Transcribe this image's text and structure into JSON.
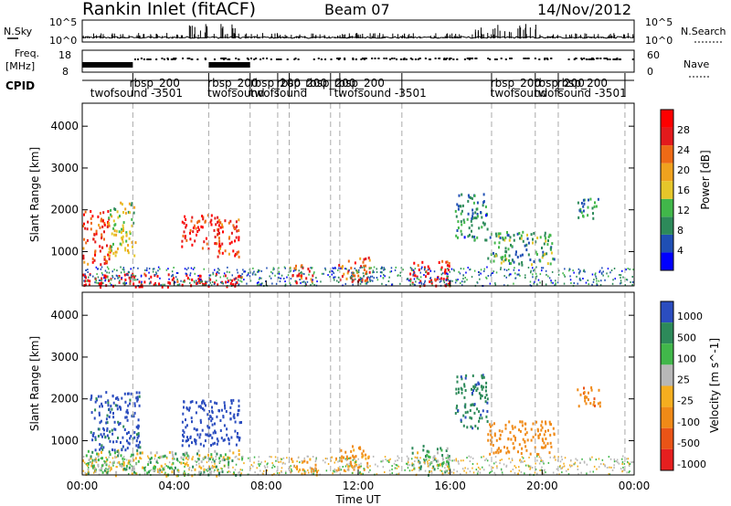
{
  "header": {
    "station": "Rankin Inlet (fitACF)",
    "beam": "Beam 07",
    "date": "14/Nov/2012"
  },
  "strip_labels": {
    "nsky": "N.Sky",
    "nsky_top": "10^5",
    "nsky_bottom": "10^0",
    "nsearch": "N.Search",
    "nsearch_top": "10^5",
    "nsearch_bottom": "10^0",
    "freq": "Freq.",
    "freq_unit": "[MHz]",
    "freq_top": "18",
    "freq_bottom": "8",
    "nave": "Nave",
    "nave_top": "60",
    "nave_bottom": "0",
    "cpid": "CPID"
  },
  "cpid_labels": [
    {
      "text": "rbsp_200",
      "t": 2.05,
      "row": 0
    },
    {
      "text": "twofsound -3501",
      "t": 0.35,
      "row": 1
    },
    {
      "text": "rbsp_200",
      "t": 5.45,
      "row": 0
    },
    {
      "text": "twofsound",
      "t": 5.45,
      "row": 1
    },
    {
      "text": "rbsp_200",
      "t": 7.3,
      "row": 0
    },
    {
      "text": "twofsound",
      "t": 7.3,
      "row": 1
    },
    {
      "text": "rbsp_200",
      "t": 8.45,
      "row": 0
    },
    {
      "text": "rbsp_200",
      "t": 9.7,
      "row": 0
    },
    {
      "text": "rbsp_200",
      "t": 10.95,
      "row": 0
    },
    {
      "text": "twofsound -3501",
      "t": 10.95,
      "row": 1
    },
    {
      "text": "rbsp_200",
      "t": 17.75,
      "row": 0
    },
    {
      "text": "twofsound",
      "t": 17.75,
      "row": 1
    },
    {
      "text": "rbsp_200",
      "t": 19.65,
      "row": 0
    },
    {
      "text": "rbsp_200",
      "t": 20.65,
      "row": 0
    },
    {
      "text": "twofsound -3501",
      "t": 19.65,
      "row": 1
    }
  ],
  "axis": {
    "xlabel": "Time UT",
    "xticks": [
      "00:00",
      "04:00",
      "08:00",
      "12:00",
      "16:00",
      "20:00",
      "00:00"
    ],
    "ylabel": "Slant Range [km]",
    "yticks": [
      "1000",
      "2000",
      "3000",
      "4000"
    ]
  },
  "colorbars": {
    "power": {
      "label": "Power [dB]",
      "ticks": [
        "4",
        "8",
        "12",
        "16",
        "20",
        "24",
        "28"
      ],
      "colors": [
        "#0000ff",
        "#1f4fb4",
        "#2d8a5a",
        "#41b74a",
        "#e6c62a",
        "#f0a21e",
        "#ee6a16",
        "#e31a1c",
        "#ff0000"
      ]
    },
    "velocity": {
      "label": "Velocity [m s^-1]",
      "ticks": [
        "1000",
        "500",
        "100",
        "25",
        "-25",
        "-100",
        "-500",
        "-1000"
      ],
      "colors": [
        "#2b4dbf",
        "#2d8a5a",
        "#41b74a",
        "#b7b7b7",
        "#f5ae1f",
        "#f08a17",
        "#ea5417",
        "#e61f1f"
      ]
    }
  },
  "chart_data": [
    {
      "type": "heatmap",
      "title": "Rankin Inlet (fitACF)",
      "subtitle": "Beam 07",
      "xlabel": "Time UT",
      "ylabel": "Slant Range [km]",
      "x_range_hours": [
        0,
        24
      ],
      "ylim": [
        180,
        4550
      ],
      "parameter": "Power [dB]",
      "color_range": [
        0,
        30
      ],
      "features": [
        {
          "t_start": 0.0,
          "t_end": 1.2,
          "range_min": 700,
          "range_max": 2000,
          "value_db": 24
        },
        {
          "t_start": 0.0,
          "t_end": 7.0,
          "range_min": 180,
          "range_max": 500,
          "value_db": 28
        },
        {
          "t_start": 1.1,
          "t_end": 2.3,
          "range_min": 900,
          "range_max": 2200,
          "value_db": 14
        },
        {
          "t_start": 4.3,
          "t_end": 6.0,
          "range_min": 1100,
          "range_max": 1900,
          "value_db": 26
        },
        {
          "t_start": 5.8,
          "t_end": 6.8,
          "range_min": 900,
          "range_max": 1800,
          "value_db": 24
        },
        {
          "t_start": 9.0,
          "t_end": 10.0,
          "range_min": 200,
          "range_max": 700,
          "value_db": 22
        },
        {
          "t_start": 11.0,
          "t_end": 12.5,
          "range_min": 300,
          "range_max": 900,
          "value_db": 22
        },
        {
          "t_start": 14.2,
          "t_end": 16.0,
          "range_min": 200,
          "range_max": 800,
          "value_db": 26
        },
        {
          "t_start": 16.2,
          "t_end": 17.6,
          "range_min": 1300,
          "range_max": 2400,
          "value_db": 8
        },
        {
          "t_start": 17.6,
          "t_end": 20.5,
          "range_min": 700,
          "range_max": 1500,
          "value_db": 10
        },
        {
          "t_start": 21.5,
          "t_end": 22.5,
          "range_min": 1800,
          "range_max": 2300,
          "value_db": 8
        }
      ]
    },
    {
      "type": "heatmap",
      "xlabel": "Time UT",
      "ylabel": "Slant Range [km]",
      "x_range_hours": [
        0,
        24
      ],
      "ylim": [
        180,
        4550
      ],
      "parameter": "Velocity [m s^-1]",
      "color_range": [
        -1000,
        1000
      ],
      "features": [
        {
          "t_start": 0.3,
          "t_end": 2.5,
          "range_min": 800,
          "range_max": 2200,
          "value_ms": 600
        },
        {
          "t_start": 4.3,
          "t_end": 6.9,
          "range_min": 900,
          "range_max": 2000,
          "value_ms": 700
        },
        {
          "t_start": 0.0,
          "t_end": 7.0,
          "range_min": 180,
          "range_max": 800,
          "value_ms": 50
        },
        {
          "t_start": 9.0,
          "t_end": 10.2,
          "range_min": 200,
          "range_max": 600,
          "value_ms": -200
        },
        {
          "t_start": 11.0,
          "t_end": 12.5,
          "range_min": 300,
          "range_max": 900,
          "value_ms": -200
        },
        {
          "t_start": 14.3,
          "t_end": 16.0,
          "range_min": 200,
          "range_max": 900,
          "value_ms": 100
        },
        {
          "t_start": 16.2,
          "t_end": 17.6,
          "range_min": 1300,
          "range_max": 2600,
          "value_ms": 400
        },
        {
          "t_start": 17.6,
          "t_end": 20.5,
          "range_min": 700,
          "range_max": 1500,
          "value_ms": -300
        },
        {
          "t_start": 21.5,
          "t_end": 22.5,
          "range_min": 1800,
          "range_max": 2300,
          "value_ms": -400
        }
      ]
    }
  ]
}
